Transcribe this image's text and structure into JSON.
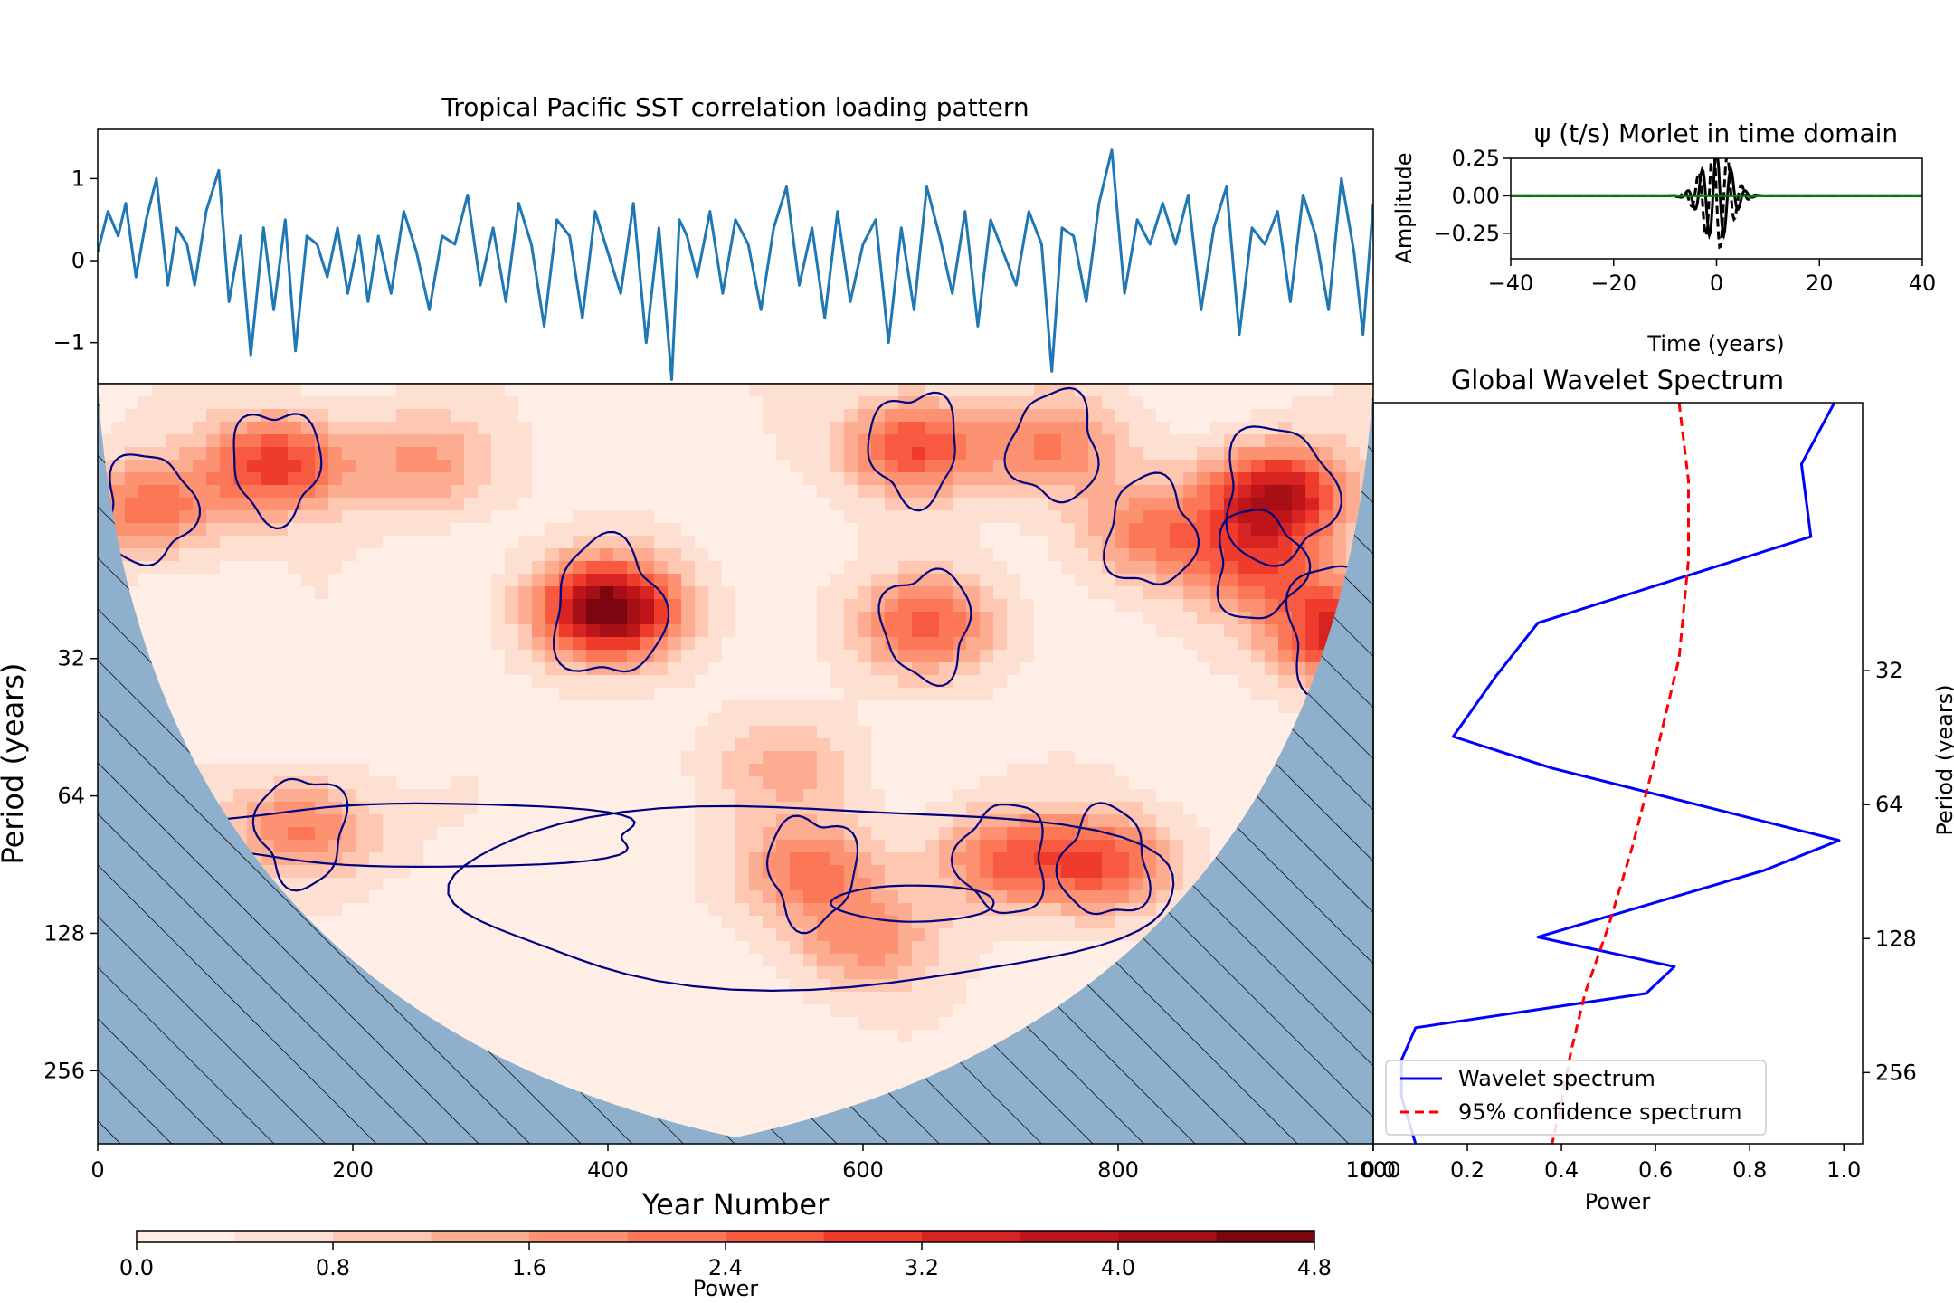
{
  "chart_data": [
    {
      "type": "line",
      "title": "Tropical Pacific SST correlation loading pattern",
      "xlim": [
        0,
        1000
      ],
      "ylim": [
        -1.5,
        1.6
      ],
      "yticks": [
        1,
        0,
        -1
      ],
      "ytick_labels": [
        "1",
        "0",
        "−1"
      ],
      "color": "#1f77b4",
      "series": [
        {
          "x": [
            0,
            8,
            16,
            22,
            30,
            38,
            46,
            55,
            62,
            70,
            76,
            85,
            95,
            103,
            112,
            120,
            130,
            138,
            147,
            155,
            164,
            172,
            180,
            188,
            196,
            205,
            212,
            220,
            230,
            240,
            250,
            260,
            270,
            280,
            290,
            300,
            310,
            320,
            330,
            340,
            350,
            360,
            370,
            380,
            390,
            400,
            410,
            420,
            430,
            440,
            450,
            456,
            462,
            470,
            480,
            490,
            500,
            510,
            520,
            530,
            540,
            550,
            560,
            570,
            580,
            590,
            600,
            610,
            620,
            630,
            640,
            650,
            660,
            670,
            680,
            690,
            700,
            710,
            720,
            730,
            740,
            748,
            756,
            765,
            775,
            785,
            795,
            805,
            815,
            825,
            835,
            845,
            855,
            865,
            875,
            885,
            895,
            905,
            915,
            925,
            935,
            945,
            955,
            965,
            975,
            985,
            992,
            1000
          ],
          "y": [
            0.1,
            0.6,
            0.3,
            0.7,
            -0.2,
            0.5,
            1.0,
            -0.3,
            0.4,
            0.2,
            -0.3,
            0.6,
            1.1,
            -0.5,
            0.3,
            -1.15,
            0.4,
            -0.6,
            0.5,
            -1.1,
            0.3,
            0.2,
            -0.2,
            0.4,
            -0.4,
            0.3,
            -0.5,
            0.3,
            -0.4,
            0.6,
            0.1,
            -0.6,
            0.3,
            0.2,
            0.8,
            -0.3,
            0.4,
            -0.5,
            0.7,
            0.2,
            -0.8,
            0.5,
            0.3,
            -0.7,
            0.6,
            0.1,
            -0.4,
            0.7,
            -1.0,
            0.4,
            -1.45,
            0.5,
            0.3,
            -0.2,
            0.6,
            -0.4,
            0.5,
            0.2,
            -0.6,
            0.4,
            0.9,
            -0.3,
            0.4,
            -0.7,
            0.6,
            -0.5,
            0.2,
            0.5,
            -1.0,
            0.4,
            -0.6,
            0.9,
            0.3,
            -0.4,
            0.6,
            -0.8,
            0.5,
            0.1,
            -0.3,
            0.6,
            0.2,
            -1.35,
            0.4,
            0.3,
            -0.5,
            0.7,
            1.35,
            -0.4,
            0.5,
            0.2,
            0.7,
            0.2,
            0.8,
            -0.6,
            0.4,
            0.9,
            -0.9,
            0.4,
            0.2,
            0.6,
            -0.5,
            0.8,
            0.3,
            -0.6,
            1.0,
            0.1,
            -0.9,
            0.7
          ]
        }
      ]
    },
    {
      "type": "line",
      "title": "ψ (t/s) Morlet in time domain",
      "xlabel": "Time (years)",
      "ylabel": "Amplitude",
      "xlim": [
        -40,
        40
      ],
      "ylim": [
        -0.42,
        0.25
      ],
      "xticks": [
        -40,
        -20,
        0,
        20,
        40
      ],
      "xtick_labels": [
        "−40",
        "−20",
        "0",
        "20",
        "40"
      ],
      "yticks": [
        0.25,
        0.0,
        -0.25
      ],
      "ytick_labels": [
        "0.25",
        "0.00",
        "−0.25"
      ],
      "line_colors": [
        "#000000",
        "#000000",
        "#008000"
      ],
      "line_styles": [
        "solid",
        "dashed",
        "solid"
      ],
      "wavelet_sigma": 2.7,
      "wavelet_omega": 6
    },
    {
      "type": "heatmap",
      "xlabel": "Year Number",
      "ylabel": "Period (years)",
      "xlim": [
        0,
        1000
      ],
      "period_range": [
        8,
        370
      ],
      "yscale": "log2",
      "xticks": [
        0,
        200,
        400,
        600,
        800,
        1000
      ],
      "xtick_labels": [
        "0",
        "200",
        "400",
        "600",
        "800",
        "1000"
      ],
      "yticks": [
        32,
        64,
        128,
        256
      ],
      "ytick_labels": [
        "32",
        "64",
        "128",
        "256"
      ],
      "colormap": "Reds",
      "cone_of_influence_color": "#8eb0cc",
      "significance_contour_color": "#000080",
      "hotspots": [
        {
          "x": 400,
          "period": 25,
          "power": 4.6
        },
        {
          "x": 140,
          "period": 12,
          "power": 2.8
        },
        {
          "x": 40,
          "period": 15,
          "power": 2.0
        },
        {
          "x": 255,
          "period": 12,
          "power": 1.4
        },
        {
          "x": 640,
          "period": 11,
          "power": 2.6
        },
        {
          "x": 750,
          "period": 11,
          "power": 1.7
        },
        {
          "x": 650,
          "period": 27,
          "power": 2.2
        },
        {
          "x": 825,
          "period": 17,
          "power": 1.8
        },
        {
          "x": 910,
          "period": 20,
          "power": 2.0
        },
        {
          "x": 925,
          "period": 14,
          "power": 3.6
        },
        {
          "x": 975,
          "period": 28,
          "power": 3.3
        },
        {
          "x": 540,
          "period": 55,
          "power": 1.0
        },
        {
          "x": 160,
          "period": 76,
          "power": 1.9
        },
        {
          "x": 560,
          "period": 93,
          "power": 1.9
        },
        {
          "x": 710,
          "period": 88,
          "power": 2.0
        },
        {
          "x": 790,
          "period": 90,
          "power": 2.3
        },
        {
          "x": 600,
          "period": 133,
          "power": 1.5
        }
      ]
    },
    {
      "type": "line",
      "title": "Global Wavelet Spectrum",
      "xlabel": "Power",
      "ylabel": "Period (years)",
      "xlim": [
        0,
        1.04
      ],
      "xticks": [
        0.0,
        0.2,
        0.4,
        0.6,
        0.8,
        1.0
      ],
      "xtick_labels": [
        "0.0",
        "0.2",
        "0.4",
        "0.6",
        "0.8",
        "1.0"
      ],
      "yticks": [
        32,
        64,
        128,
        256
      ],
      "ytick_labels": [
        "32",
        "64",
        "128",
        "256"
      ],
      "legend_position": "lower-right",
      "series": [
        {
          "name": "Wavelet spectrum",
          "color": "#0000ff",
          "style": "solid",
          "power": [
            0.98,
            0.91,
            0.93,
            0.35,
            0.26,
            0.17,
            0.38,
            0.99,
            0.83,
            0.35,
            0.64,
            0.58,
            0.09,
            0.06,
            0.06,
            0.09
          ],
          "period": [
            8.0,
            11.0,
            16.0,
            25.0,
            33.0,
            45.0,
            53.0,
            77.0,
            90.0,
            127.0,
            148.0,
            170.0,
            203.0,
            240.0,
            290.0,
            370.0
          ]
        },
        {
          "name": "95% confidence spectrum",
          "color": "#ff0000",
          "style": "dashed",
          "power": [
            0.65,
            0.67,
            0.67,
            0.65,
            0.6,
            0.55,
            0.5,
            0.45,
            0.42,
            0.4,
            0.38
          ],
          "period": [
            8.0,
            12.0,
            18.0,
            30.0,
            50.0,
            80.0,
            120.0,
            170.0,
            230.0,
            300.0,
            370.0
          ]
        }
      ]
    },
    {
      "type": "colorbar",
      "label": "Power",
      "range": [
        0.0,
        4.8
      ],
      "ticks": [
        0.0,
        0.8,
        1.6,
        2.4,
        3.2,
        4.0,
        4.8
      ],
      "tick_labels": [
        "0.0",
        "0.8",
        "1.6",
        "2.4",
        "3.2",
        "4.0",
        "4.8"
      ],
      "levels": 12
    }
  ]
}
